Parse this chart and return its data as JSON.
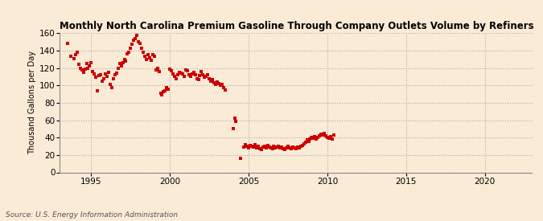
{
  "title": "Monthly North Carolina Premium Gasoline Through Company Outlets Volume by Refiners",
  "ylabel": "Thousand Gallons per Day",
  "source": "Source: U.S. Energy Information Administration",
  "background_color": "#faebd7",
  "marker_color": "#cc0000",
  "xlim": [
    1993.0,
    2023.0
  ],
  "ylim": [
    0,
    160
  ],
  "yticks": [
    0,
    20,
    40,
    60,
    80,
    100,
    120,
    140,
    160
  ],
  "xticks": [
    1995,
    2000,
    2005,
    2010,
    2015,
    2020
  ],
  "data_points": [
    [
      1993.5,
      148
    ],
    [
      1993.7,
      133
    ],
    [
      1993.9,
      131
    ],
    [
      1994.0,
      135
    ],
    [
      1994.1,
      138
    ],
    [
      1994.2,
      124
    ],
    [
      1994.3,
      120
    ],
    [
      1994.4,
      118
    ],
    [
      1994.5,
      115
    ],
    [
      1994.6,
      119
    ],
    [
      1994.7,
      125
    ],
    [
      1994.8,
      120
    ],
    [
      1994.9,
      122
    ],
    [
      1995.0,
      126
    ],
    [
      1995.1,
      116
    ],
    [
      1995.2,
      113
    ],
    [
      1995.3,
      109
    ],
    [
      1995.4,
      94
    ],
    [
      1995.5,
      111
    ],
    [
      1995.6,
      112
    ],
    [
      1995.7,
      105
    ],
    [
      1995.8,
      108
    ],
    [
      1995.9,
      113
    ],
    [
      1996.0,
      110
    ],
    [
      1996.1,
      115
    ],
    [
      1996.2,
      101
    ],
    [
      1996.3,
      97
    ],
    [
      1996.4,
      108
    ],
    [
      1996.5,
      112
    ],
    [
      1996.6,
      114
    ],
    [
      1996.7,
      120
    ],
    [
      1996.8,
      125
    ],
    [
      1996.9,
      122
    ],
    [
      1997.0,
      126
    ],
    [
      1997.1,
      130
    ],
    [
      1997.2,
      128
    ],
    [
      1997.3,
      136
    ],
    [
      1997.4,
      138
    ],
    [
      1997.5,
      143
    ],
    [
      1997.6,
      147
    ],
    [
      1997.7,
      152
    ],
    [
      1997.8,
      154
    ],
    [
      1997.9,
      157
    ],
    [
      1998.0,
      150
    ],
    [
      1998.1,
      148
    ],
    [
      1998.2,
      143
    ],
    [
      1998.3,
      138
    ],
    [
      1998.4,
      133
    ],
    [
      1998.5,
      130
    ],
    [
      1998.6,
      135
    ],
    [
      1998.7,
      132
    ],
    [
      1998.8,
      129
    ],
    [
      1998.9,
      135
    ],
    [
      1999.0,
      133
    ],
    [
      1999.1,
      118
    ],
    [
      1999.2,
      120
    ],
    [
      1999.3,
      116
    ],
    [
      1999.4,
      91
    ],
    [
      1999.5,
      89
    ],
    [
      1999.6,
      93
    ],
    [
      1999.7,
      94
    ],
    [
      1999.8,
      97
    ],
    [
      1999.9,
      96
    ],
    [
      2000.0,
      119
    ],
    [
      2000.1,
      117
    ],
    [
      2000.2,
      113
    ],
    [
      2000.3,
      110
    ],
    [
      2000.4,
      108
    ],
    [
      2000.5,
      112
    ],
    [
      2000.6,
      115
    ],
    [
      2000.7,
      114
    ],
    [
      2000.8,
      113
    ],
    [
      2000.9,
      110
    ],
    [
      2001.0,
      118
    ],
    [
      2001.1,
      117
    ],
    [
      2001.2,
      112
    ],
    [
      2001.3,
      110
    ],
    [
      2001.4,
      113
    ],
    [
      2001.5,
      115
    ],
    [
      2001.6,
      112
    ],
    [
      2001.7,
      108
    ],
    [
      2001.8,
      107
    ],
    [
      2001.9,
      111
    ],
    [
      2002.0,
      116
    ],
    [
      2002.1,
      112
    ],
    [
      2002.2,
      109
    ],
    [
      2002.3,
      110
    ],
    [
      2002.4,
      112
    ],
    [
      2002.5,
      108
    ],
    [
      2002.6,
      105
    ],
    [
      2002.7,
      107
    ],
    [
      2002.8,
      103
    ],
    [
      2002.9,
      101
    ],
    [
      2003.0,
      104
    ],
    [
      2003.1,
      102
    ],
    [
      2003.2,
      100
    ],
    [
      2003.3,
      101
    ],
    [
      2003.4,
      97
    ],
    [
      2003.5,
      95
    ],
    [
      2004.0,
      50
    ],
    [
      2004.1,
      62
    ],
    [
      2004.2,
      59
    ],
    [
      2004.5,
      16
    ],
    [
      2004.7,
      29
    ],
    [
      2004.8,
      32
    ],
    [
      2004.9,
      30
    ],
    [
      2005.0,
      28
    ],
    [
      2005.1,
      31
    ],
    [
      2005.2,
      30
    ],
    [
      2005.3,
      29
    ],
    [
      2005.4,
      32
    ],
    [
      2005.5,
      28
    ],
    [
      2005.6,
      30
    ],
    [
      2005.7,
      27
    ],
    [
      2005.8,
      26
    ],
    [
      2005.9,
      29
    ],
    [
      2006.0,
      30
    ],
    [
      2006.1,
      28
    ],
    [
      2006.2,
      31
    ],
    [
      2006.3,
      29
    ],
    [
      2006.4,
      28
    ],
    [
      2006.5,
      27
    ],
    [
      2006.6,
      30
    ],
    [
      2006.7,
      28
    ],
    [
      2006.8,
      29
    ],
    [
      2006.9,
      30
    ],
    [
      2007.0,
      28
    ],
    [
      2007.1,
      29
    ],
    [
      2007.2,
      27
    ],
    [
      2007.3,
      26
    ],
    [
      2007.4,
      28
    ],
    [
      2007.5,
      30
    ],
    [
      2007.6,
      28
    ],
    [
      2007.7,
      27
    ],
    [
      2007.8,
      29
    ],
    [
      2007.9,
      28
    ],
    [
      2008.0,
      27
    ],
    [
      2008.1,
      29
    ],
    [
      2008.2,
      28
    ],
    [
      2008.3,
      30
    ],
    [
      2008.4,
      31
    ],
    [
      2008.5,
      33
    ],
    [
      2008.6,
      35
    ],
    [
      2008.7,
      37
    ],
    [
      2008.8,
      36
    ],
    [
      2008.9,
      38
    ],
    [
      2009.0,
      40
    ],
    [
      2009.1,
      39
    ],
    [
      2009.2,
      41
    ],
    [
      2009.3,
      38
    ],
    [
      2009.4,
      40
    ],
    [
      2009.5,
      42
    ],
    [
      2009.6,
      44
    ],
    [
      2009.7,
      43
    ],
    [
      2009.8,
      45
    ],
    [
      2009.9,
      42
    ],
    [
      2010.0,
      40
    ],
    [
      2010.1,
      39
    ],
    [
      2010.2,
      41
    ],
    [
      2010.3,
      38
    ],
    [
      2010.4,
      43
    ]
  ]
}
